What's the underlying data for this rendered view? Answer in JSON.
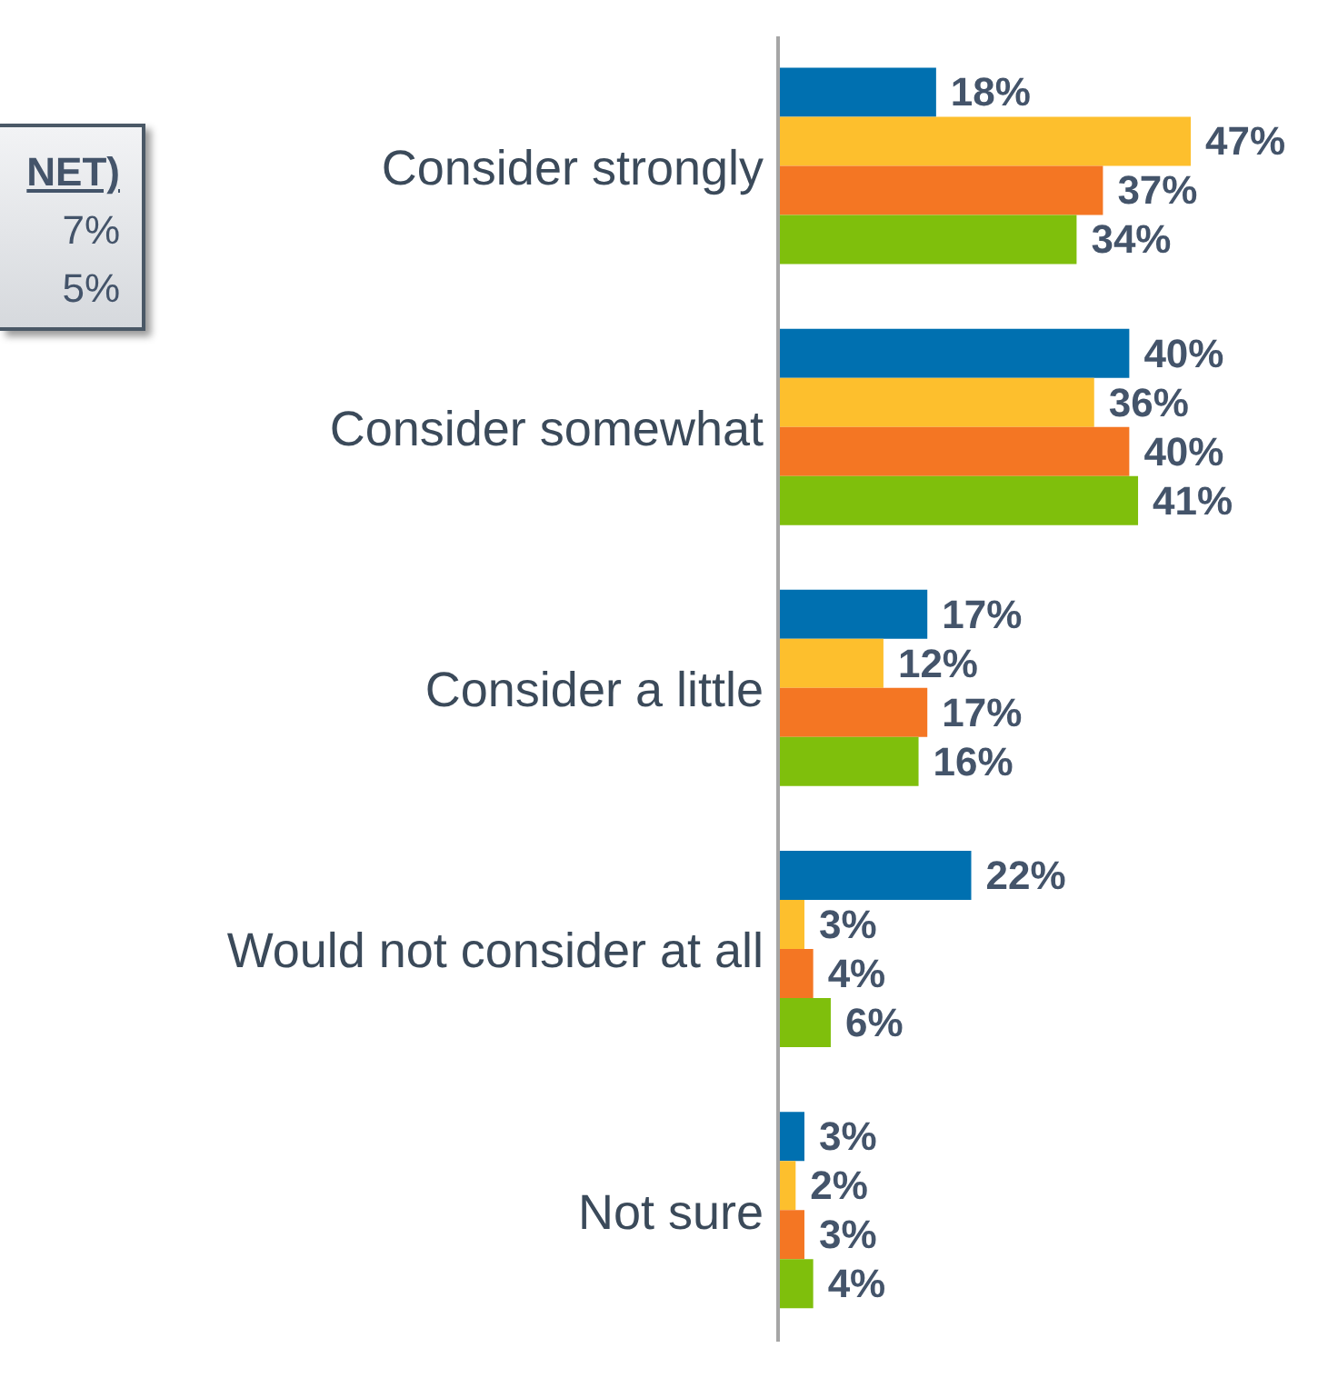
{
  "chart_data": {
    "type": "bar",
    "orientation": "horizontal",
    "categories": [
      "Consider strongly",
      "Consider somewhat",
      "Consider a little",
      "Would not consider at all",
      "Not sure"
    ],
    "series": [
      {
        "color": "#0070b0",
        "values": [
          18,
          40,
          17,
          22,
          3
        ],
        "value_labels": [
          "18%",
          "40%",
          "17%",
          "22%",
          "3%"
        ]
      },
      {
        "color": "#fdbf2d",
        "values": [
          47,
          36,
          12,
          3,
          2
        ],
        "value_labels": [
          "47%",
          "36%",
          "12%",
          "3%",
          "2%"
        ]
      },
      {
        "color": "#f47623",
        "values": [
          37,
          40,
          17,
          4,
          3
        ],
        "value_labels": [
          "37%",
          "40%",
          "17%",
          "4%",
          "3%"
        ]
      },
      {
        "color": "#7fbf0c",
        "values": [
          34,
          41,
          16,
          6,
          4
        ],
        "value_labels": [
          "34%",
          "41%",
          "16%",
          "6%",
          "4%"
        ]
      }
    ],
    "annotations": [
      "NET)",
      "7%",
      "5%"
    ],
    "legend": false,
    "grid": false
  }
}
